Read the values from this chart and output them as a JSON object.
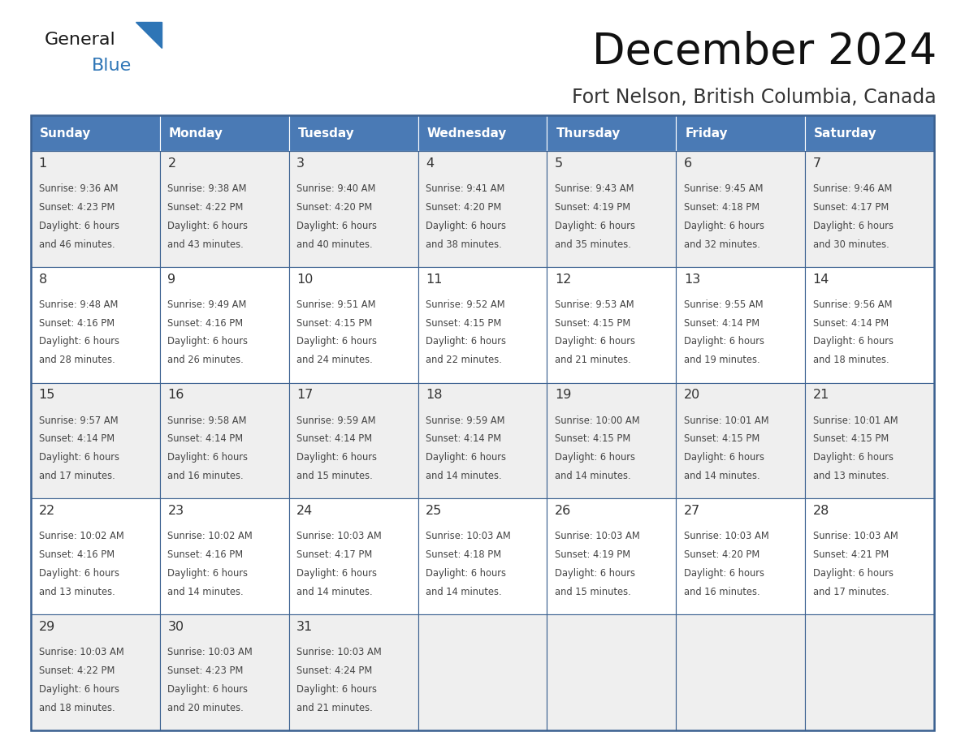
{
  "title": "December 2024",
  "subtitle": "Fort Nelson, British Columbia, Canada",
  "header_color": "#4a7ab5",
  "header_text_color": "#FFFFFF",
  "day_names": [
    "Sunday",
    "Monday",
    "Tuesday",
    "Wednesday",
    "Thursday",
    "Friday",
    "Saturday"
  ],
  "row_colors": [
    "#EFEFEF",
    "#FFFFFF"
  ],
  "border_color": "#3a6090",
  "day_num_color": "#333333",
  "text_color": "#444444",
  "calendar_data": [
    {
      "day": 1,
      "sunrise": "9:36 AM",
      "sunset": "4:23 PM",
      "daylight_l1": "6 hours",
      "daylight_l2": "and 46 minutes."
    },
    {
      "day": 2,
      "sunrise": "9:38 AM",
      "sunset": "4:22 PM",
      "daylight_l1": "6 hours",
      "daylight_l2": "and 43 minutes."
    },
    {
      "day": 3,
      "sunrise": "9:40 AM",
      "sunset": "4:20 PM",
      "daylight_l1": "6 hours",
      "daylight_l2": "and 40 minutes."
    },
    {
      "day": 4,
      "sunrise": "9:41 AM",
      "sunset": "4:20 PM",
      "daylight_l1": "6 hours",
      "daylight_l2": "and 38 minutes."
    },
    {
      "day": 5,
      "sunrise": "9:43 AM",
      "sunset": "4:19 PM",
      "daylight_l1": "6 hours",
      "daylight_l2": "and 35 minutes."
    },
    {
      "day": 6,
      "sunrise": "9:45 AM",
      "sunset": "4:18 PM",
      "daylight_l1": "6 hours",
      "daylight_l2": "and 32 minutes."
    },
    {
      "day": 7,
      "sunrise": "9:46 AM",
      "sunset": "4:17 PM",
      "daylight_l1": "6 hours",
      "daylight_l2": "and 30 minutes."
    },
    {
      "day": 8,
      "sunrise": "9:48 AM",
      "sunset": "4:16 PM",
      "daylight_l1": "6 hours",
      "daylight_l2": "and 28 minutes."
    },
    {
      "day": 9,
      "sunrise": "9:49 AM",
      "sunset": "4:16 PM",
      "daylight_l1": "6 hours",
      "daylight_l2": "and 26 minutes."
    },
    {
      "day": 10,
      "sunrise": "9:51 AM",
      "sunset": "4:15 PM",
      "daylight_l1": "6 hours",
      "daylight_l2": "and 24 minutes."
    },
    {
      "day": 11,
      "sunrise": "9:52 AM",
      "sunset": "4:15 PM",
      "daylight_l1": "6 hours",
      "daylight_l2": "and 22 minutes."
    },
    {
      "day": 12,
      "sunrise": "9:53 AM",
      "sunset": "4:15 PM",
      "daylight_l1": "6 hours",
      "daylight_l2": "and 21 minutes."
    },
    {
      "day": 13,
      "sunrise": "9:55 AM",
      "sunset": "4:14 PM",
      "daylight_l1": "6 hours",
      "daylight_l2": "and 19 minutes."
    },
    {
      "day": 14,
      "sunrise": "9:56 AM",
      "sunset": "4:14 PM",
      "daylight_l1": "6 hours",
      "daylight_l2": "and 18 minutes."
    },
    {
      "day": 15,
      "sunrise": "9:57 AM",
      "sunset": "4:14 PM",
      "daylight_l1": "6 hours",
      "daylight_l2": "and 17 minutes."
    },
    {
      "day": 16,
      "sunrise": "9:58 AM",
      "sunset": "4:14 PM",
      "daylight_l1": "6 hours",
      "daylight_l2": "and 16 minutes."
    },
    {
      "day": 17,
      "sunrise": "9:59 AM",
      "sunset": "4:14 PM",
      "daylight_l1": "6 hours",
      "daylight_l2": "and 15 minutes."
    },
    {
      "day": 18,
      "sunrise": "9:59 AM",
      "sunset": "4:14 PM",
      "daylight_l1": "6 hours",
      "daylight_l2": "and 14 minutes."
    },
    {
      "day": 19,
      "sunrise": "10:00 AM",
      "sunset": "4:15 PM",
      "daylight_l1": "6 hours",
      "daylight_l2": "and 14 minutes."
    },
    {
      "day": 20,
      "sunrise": "10:01 AM",
      "sunset": "4:15 PM",
      "daylight_l1": "6 hours",
      "daylight_l2": "and 14 minutes."
    },
    {
      "day": 21,
      "sunrise": "10:01 AM",
      "sunset": "4:15 PM",
      "daylight_l1": "6 hours",
      "daylight_l2": "and 13 minutes."
    },
    {
      "day": 22,
      "sunrise": "10:02 AM",
      "sunset": "4:16 PM",
      "daylight_l1": "6 hours",
      "daylight_l2": "and 13 minutes."
    },
    {
      "day": 23,
      "sunrise": "10:02 AM",
      "sunset": "4:16 PM",
      "daylight_l1": "6 hours",
      "daylight_l2": "and 14 minutes."
    },
    {
      "day": 24,
      "sunrise": "10:03 AM",
      "sunset": "4:17 PM",
      "daylight_l1": "6 hours",
      "daylight_l2": "and 14 minutes."
    },
    {
      "day": 25,
      "sunrise": "10:03 AM",
      "sunset": "4:18 PM",
      "daylight_l1": "6 hours",
      "daylight_l2": "and 14 minutes."
    },
    {
      "day": 26,
      "sunrise": "10:03 AM",
      "sunset": "4:19 PM",
      "daylight_l1": "6 hours",
      "daylight_l2": "and 15 minutes."
    },
    {
      "day": 27,
      "sunrise": "10:03 AM",
      "sunset": "4:20 PM",
      "daylight_l1": "6 hours",
      "daylight_l2": "and 16 minutes."
    },
    {
      "day": 28,
      "sunrise": "10:03 AM",
      "sunset": "4:21 PM",
      "daylight_l1": "6 hours",
      "daylight_l2": "and 17 minutes."
    },
    {
      "day": 29,
      "sunrise": "10:03 AM",
      "sunset": "4:22 PM",
      "daylight_l1": "6 hours",
      "daylight_l2": "and 18 minutes."
    },
    {
      "day": 30,
      "sunrise": "10:03 AM",
      "sunset": "4:23 PM",
      "daylight_l1": "6 hours",
      "daylight_l2": "and 20 minutes."
    },
    {
      "day": 31,
      "sunrise": "10:03 AM",
      "sunset": "4:24 PM",
      "daylight_l1": "6 hours",
      "daylight_l2": "and 21 minutes."
    }
  ],
  "logo_text1": "General",
  "logo_text2": "Blue",
  "logo_color1": "#1a1a1a",
  "logo_color2": "#2E75B6",
  "triangle_color": "#2E75B6",
  "fig_width": 11.88,
  "fig_height": 9.18,
  "dpi": 100
}
